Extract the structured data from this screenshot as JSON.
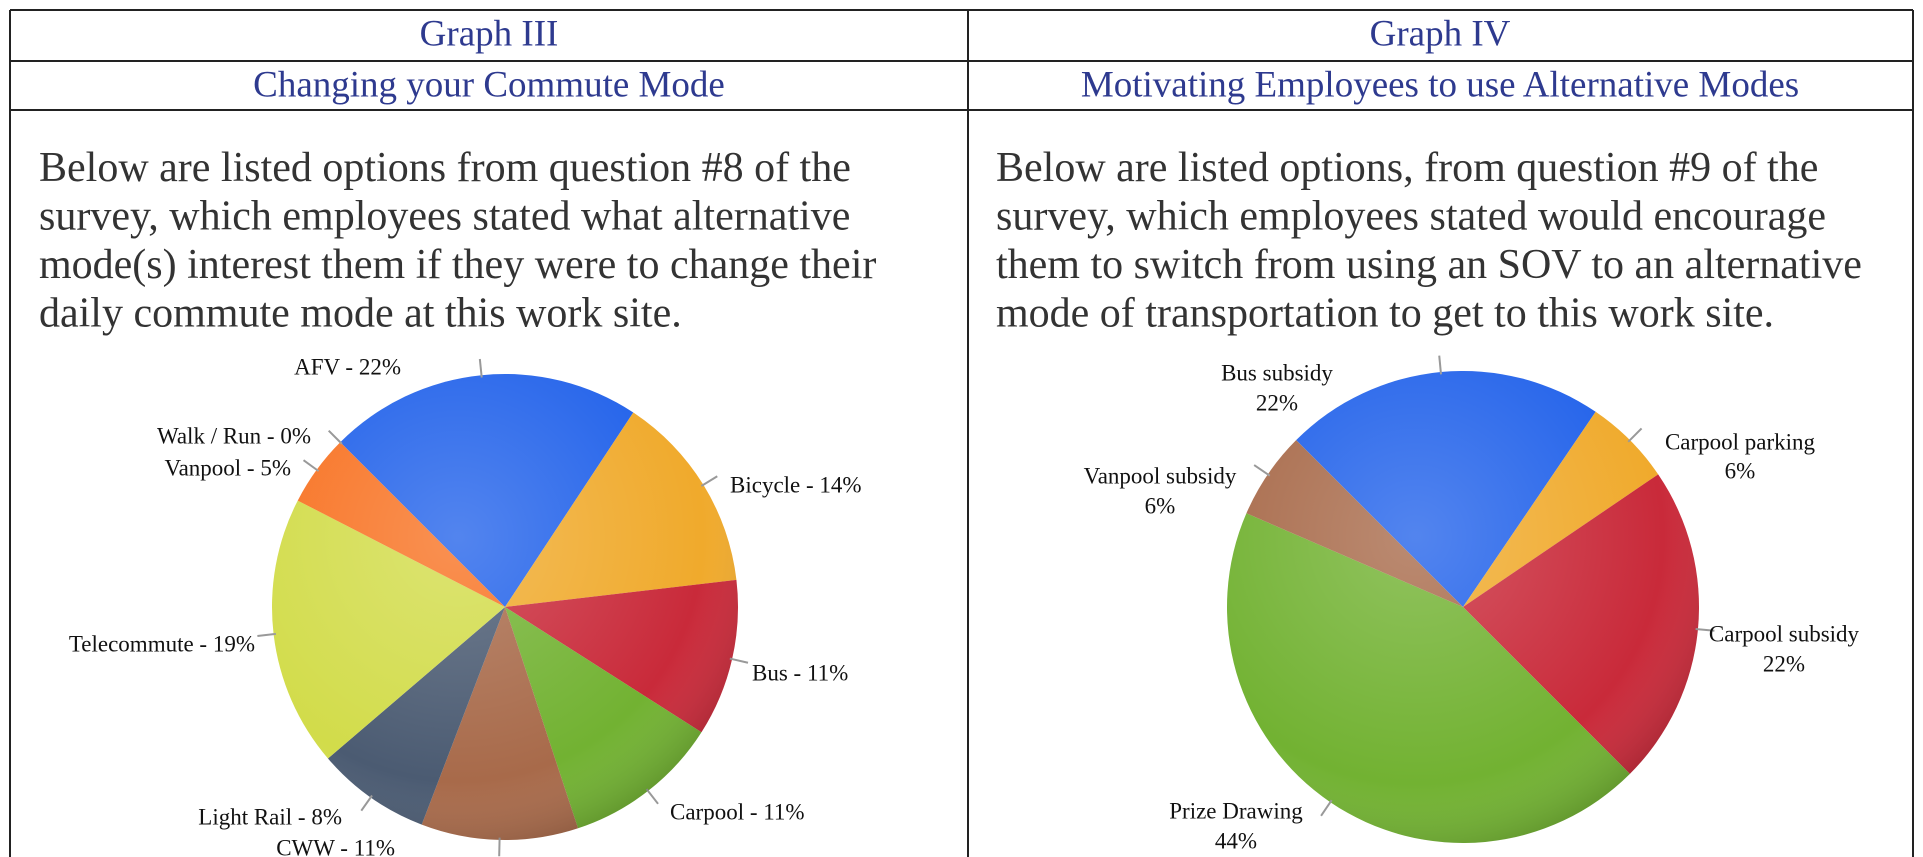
{
  "document": {
    "columns": [
      {
        "title": "Graph III",
        "subtitle": "Changing your Commute Mode",
        "text": [
          "Below are listed options from question #8 of the",
          "survey, which employees stated what alternative",
          "mode(s) interest them if they were to change their",
          "daily commute mode at this work site."
        ]
      },
      {
        "title": "Graph IV",
        "subtitle": "Motivating Employees to use Alternative Modes",
        "text": [
          "Below are listed options, from question #9 of the",
          "survey, which employees stated would encourage",
          "them to switch from using an SOV to an alternative",
          "mode of transportation to get to this work site."
        ]
      }
    ]
  },
  "chart_data": [
    {
      "type": "pie",
      "values": [
        22,
        14,
        11,
        11,
        11,
        8,
        19,
        5,
        0
      ],
      "value_labels": [
        "AFV - 22%",
        "Bicycle - 14%",
        "Bus - 11%",
        "Carpool - 11%",
        "CWW - 11%",
        "Light Rail - 8%",
        "Telecommute - 19%",
        "Vanpool - 5%",
        "Walk / Run - 0%"
      ],
      "colors": [
        "#2262ea",
        "#f0aa2c",
        "#c92a3a",
        "#72b232",
        "#a86a4a",
        "#4b5b72",
        "#d2dc4a",
        "#f87222",
        "#8a8a8a"
      ]
    },
    {
      "type": "pie",
      "categories": [
        "Bus subsidy",
        "Carpool parking",
        "Carpool subsidy",
        "Prize Drawing",
        "Vanpool subsidy"
      ],
      "values": [
        22,
        6,
        22,
        44,
        6
      ],
      "value_labels": [
        "22%",
        "6%",
        "22%",
        "44%",
        "6%"
      ],
      "colors": [
        "#2262ea",
        "#f0aa2c",
        "#c92a3a",
        "#72b232",
        "#a86a4a"
      ]
    }
  ]
}
